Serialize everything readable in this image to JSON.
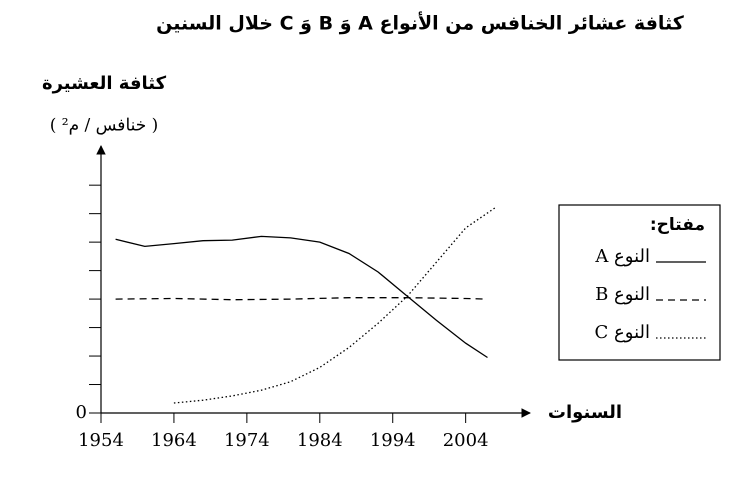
{
  "chart_data": {
    "type": "line",
    "title": "كثافة عشائر الخنافس من الأنواع A وَ B وَ C خلال السنين",
    "y_label": "كثافة العشيرة",
    "y_unit": "( خنافس / م² )",
    "x_label": "السنوات",
    "legend_title": "مفتاح:",
    "legend": "right",
    "xlim": [
      1954,
      2012
    ],
    "xticks": [
      1954,
      1964,
      1974,
      1984,
      1994,
      2004
    ],
    "ylim": [
      0,
      9.2
    ],
    "yticks": [
      0
    ],
    "y_minor_ticks": [
      1,
      2,
      3,
      4,
      5,
      6,
      7,
      8
    ],
    "series": [
      {
        "name": "النوع A",
        "color": "#000000",
        "dash": "solid",
        "x": [
          1956,
          1960,
          1964,
          1968,
          1972,
          1976,
          1980,
          1984,
          1988,
          1992,
          1996,
          2000,
          2004,
          2007
        ],
        "values": [
          6.1,
          5.85,
          5.95,
          6.05,
          6.07,
          6.2,
          6.15,
          6.0,
          5.6,
          4.95,
          4.1,
          3.25,
          2.45,
          1.95
        ]
      },
      {
        "name": "النوع B",
        "color": "#000000",
        "dash": "dashed",
        "x": [
          1956,
          1964,
          1972,
          1980,
          1988,
          1996,
          2004,
          2007
        ],
        "values": [
          4.0,
          4.02,
          3.98,
          4.0,
          4.05,
          4.05,
          4.02,
          4.0
        ]
      },
      {
        "name": "النوع C",
        "color": "#000000",
        "dash": "dotted",
        "x": [
          1964,
          1968,
          1972,
          1976,
          1980,
          1984,
          1988,
          1992,
          1996,
          2000,
          2004,
          2008
        ],
        "values": [
          0.35,
          0.45,
          0.6,
          0.8,
          1.1,
          1.6,
          2.3,
          3.15,
          4.1,
          5.3,
          6.5,
          7.2
        ]
      }
    ]
  }
}
